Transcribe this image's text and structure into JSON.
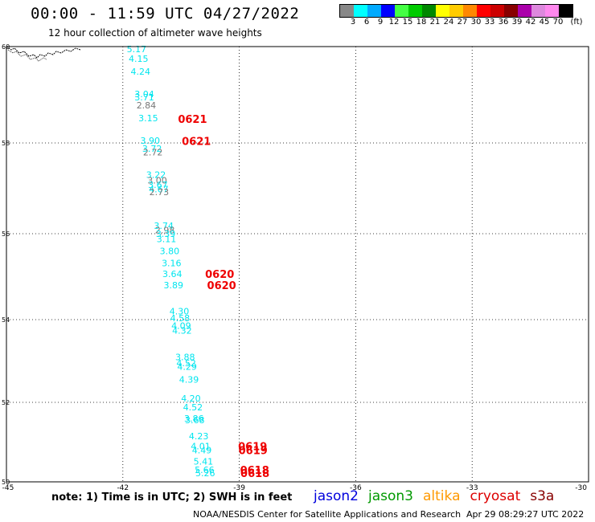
{
  "header": {
    "title": "00:00 - 11:59 UTC 04/27/2022",
    "subtitle": "12 hour collection of altimeter wave heights"
  },
  "legend": {
    "unit": "(ft)",
    "colors": [
      "#888888",
      "#00ffff",
      "#00aaff",
      "#0000ff",
      "#44ff44",
      "#00cc00",
      "#008800",
      "#ffff00",
      "#ffcc00",
      "#ff8800",
      "#ff0000",
      "#cc0000",
      "#880000",
      "#aa00aa",
      "#dd88dd",
      "#ff88ee",
      "#000000"
    ],
    "ticks": [
      "3",
      "6",
      "9",
      "12",
      "15",
      "18",
      "21",
      "24",
      "27",
      "30",
      "33",
      "36",
      "39",
      "42",
      "45",
      "70"
    ]
  },
  "axes": {
    "lon_labels": [
      "-45",
      "-42",
      "-39",
      "-36",
      "-33",
      "-30"
    ],
    "lat_labels": [
      "60",
      "58",
      "56",
      "54",
      "52",
      "50"
    ]
  },
  "observations": [
    {
      "lon": -41.9,
      "lat": 59.95,
      "text": "5.17",
      "color": "#00e5ee"
    },
    {
      "lon": -41.85,
      "lat": 59.75,
      "text": "4.15",
      "color": "#00e5ee"
    },
    {
      "lon": -41.8,
      "lat": 59.48,
      "text": "4.24",
      "color": "#00e5ee"
    },
    {
      "lon": -41.7,
      "lat": 59.02,
      "text": "3.04",
      "color": "#00e5ee"
    },
    {
      "lon": -41.7,
      "lat": 58.95,
      "text": "3.71",
      "color": "#00e5ee"
    },
    {
      "lon": -41.65,
      "lat": 58.78,
      "text": "2.84",
      "color": "#777777"
    },
    {
      "lon": -41.6,
      "lat": 58.52,
      "text": "3.15",
      "color": "#00e5ee"
    },
    {
      "lon": -41.55,
      "lat": 58.05,
      "text": "3.90",
      "color": "#00e5ee"
    },
    {
      "lon": -41.5,
      "lat": 57.88,
      "text": "3.72",
      "color": "#00e5ee"
    },
    {
      "lon": -41.48,
      "lat": 57.8,
      "text": "2.72",
      "color": "#777777"
    },
    {
      "lon": -41.4,
      "lat": 57.3,
      "text": "3.22",
      "color": "#00e5ee"
    },
    {
      "lon": -41.37,
      "lat": 57.18,
      "text": "3.00",
      "color": "#777777"
    },
    {
      "lon": -41.35,
      "lat": 57.08,
      "text": "3.67",
      "color": "#00e5ee"
    },
    {
      "lon": -41.33,
      "lat": 56.98,
      "text": "4.67",
      "color": "#00e5ee"
    },
    {
      "lon": -41.32,
      "lat": 56.92,
      "text": "2.73",
      "color": "#777777"
    },
    {
      "lon": -41.2,
      "lat": 56.18,
      "text": "3.74",
      "color": "#00e5ee"
    },
    {
      "lon": -41.17,
      "lat": 56.08,
      "text": "2.98",
      "color": "#777777"
    },
    {
      "lon": -41.15,
      "lat": 56.0,
      "text": "3.39",
      "color": "#00e5ee"
    },
    {
      "lon": -41.13,
      "lat": 55.88,
      "text": "3.11",
      "color": "#00e5ee"
    },
    {
      "lon": -41.05,
      "lat": 55.6,
      "text": "3.80",
      "color": "#00e5ee"
    },
    {
      "lon": -41.0,
      "lat": 55.32,
      "text": "3.16",
      "color": "#00e5ee"
    },
    {
      "lon": -40.98,
      "lat": 55.07,
      "text": "3.64",
      "color": "#00e5ee"
    },
    {
      "lon": -40.95,
      "lat": 54.8,
      "text": "3.89",
      "color": "#00e5ee"
    },
    {
      "lon": -40.8,
      "lat": 54.2,
      "text": "4.30",
      "color": "#00e5ee"
    },
    {
      "lon": -40.78,
      "lat": 54.04,
      "text": "4.58",
      "color": "#00e5ee"
    },
    {
      "lon": -40.75,
      "lat": 53.85,
      "text": "4.09",
      "color": "#00e5ee"
    },
    {
      "lon": -40.73,
      "lat": 53.74,
      "text": "4.32",
      "color": "#00e5ee"
    },
    {
      "lon": -40.65,
      "lat": 53.1,
      "text": "3.88",
      "color": "#00e5ee"
    },
    {
      "lon": -40.62,
      "lat": 52.95,
      "text": "4.52",
      "color": "#00e5ee"
    },
    {
      "lon": -40.6,
      "lat": 52.86,
      "text": "4.29",
      "color": "#00e5ee"
    },
    {
      "lon": -40.55,
      "lat": 52.55,
      "text": "4.39",
      "color": "#00e5ee"
    },
    {
      "lon": -40.5,
      "lat": 52.1,
      "text": "4.20",
      "color": "#00e5ee"
    },
    {
      "lon": -40.45,
      "lat": 51.88,
      "text": "4.52",
      "color": "#00e5ee"
    },
    {
      "lon": -40.42,
      "lat": 51.6,
      "text": "3.86",
      "color": "#00e5ee"
    },
    {
      "lon": -40.4,
      "lat": 51.56,
      "text": "3.68",
      "color": "#00e5ee"
    },
    {
      "lon": -40.3,
      "lat": 51.15,
      "text": "4.23",
      "color": "#00e5ee"
    },
    {
      "lon": -40.25,
      "lat": 50.9,
      "text": "4.01",
      "color": "#00e5ee"
    },
    {
      "lon": -40.22,
      "lat": 50.8,
      "text": "4.49",
      "color": "#00e5ee"
    },
    {
      "lon": -40.18,
      "lat": 50.52,
      "text": "5.41",
      "color": "#00e5ee"
    },
    {
      "lon": -40.15,
      "lat": 50.3,
      "text": "5.66",
      "color": "#00e5ee"
    },
    {
      "lon": -40.13,
      "lat": 50.22,
      "text": "5.26",
      "color": "#00e5ee"
    }
  ],
  "time_tags": [
    {
      "lon": -40.58,
      "lat": 58.5,
      "text": "0621",
      "color": "#ee0000"
    },
    {
      "lon": -40.48,
      "lat": 58.04,
      "text": "0621",
      "color": "#ee0000"
    },
    {
      "lon": -39.88,
      "lat": 55.07,
      "text": "0620",
      "color": "#ee0000"
    },
    {
      "lon": -39.83,
      "lat": 54.8,
      "text": "0620",
      "color": "#ee0000"
    },
    {
      "lon": -39.03,
      "lat": 50.9,
      "text": "0619",
      "color": "#ee0000"
    },
    {
      "lon": -39.02,
      "lat": 50.8,
      "text": "0619",
      "color": "#ee0000"
    },
    {
      "lon": -38.98,
      "lat": 50.3,
      "text": "0618",
      "color": "#ee0000"
    },
    {
      "lon": -38.97,
      "lat": 50.22,
      "text": "0618",
      "color": "#ee0000"
    }
  ],
  "footer": {
    "note": "note: 1) Time is in UTC; 2) SWH is in feet",
    "missions": [
      {
        "name": "jason2",
        "color": "#0000dd"
      },
      {
        "name": "jason3",
        "color": "#009900"
      },
      {
        "name": "altika",
        "color": "#ff9900"
      },
      {
        "name": "cryosat",
        "color": "#dd0000"
      },
      {
        "name": "s3a",
        "color": "#880000"
      }
    ],
    "credit": "NOAA/NESDIS Center for Satellite Applications and Research",
    "timestamp": "Apr 29 08:29:27 UTC 2022"
  }
}
